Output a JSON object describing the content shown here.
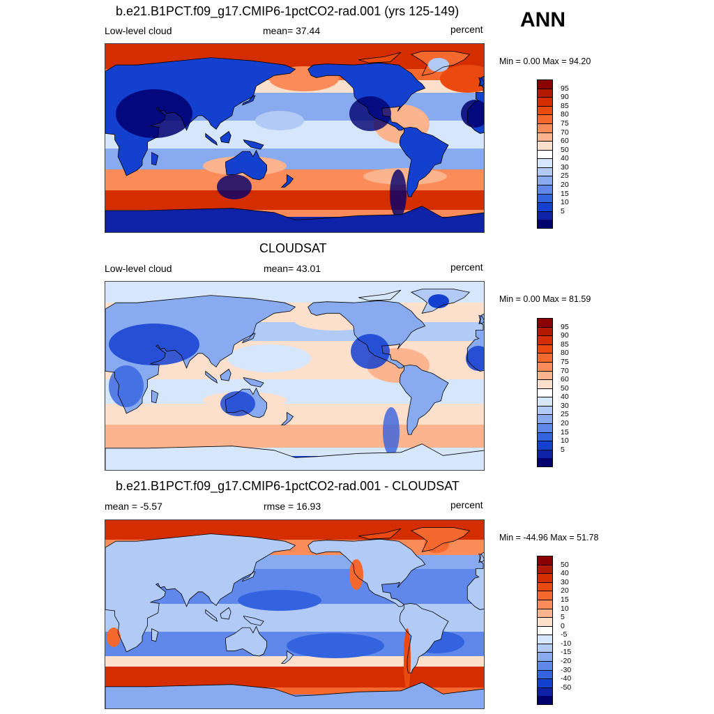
{
  "season": "ANN",
  "panels": [
    {
      "id": "model",
      "title": "b.e21.B1PCT.f09_g17.CMIP6-1pctCO2-rad.001 (yrs 125-149)",
      "left": "Low-level cloud",
      "center": "mean=  37.44",
      "right": "percent",
      "minmax": "Min =    0.00 Max =  94.20",
      "map_kind": "field",
      "mean": 37.44,
      "min": 0.0,
      "max": 94.2
    },
    {
      "id": "obs",
      "title": "CLOUDSAT",
      "left": "Low-level cloud",
      "center": "mean=  43.01",
      "right": "percent",
      "minmax": "Min =    0.00 Max =  81.59",
      "map_kind": "obs",
      "mean": 43.01,
      "min": 0.0,
      "max": 81.59
    },
    {
      "id": "diff",
      "title": "b.e21.B1PCT.f09_g17.CMIP6-1pctCO2-rad.001 - CLOUDSAT",
      "left": "mean =  -5.57",
      "center": "rmse =  16.93",
      "right": "percent",
      "minmax": "Min = -44.96 Max =  51.78",
      "map_kind": "diff",
      "mean": -5.57,
      "rmse": 16.93,
      "min": -44.96,
      "max": 51.78
    }
  ],
  "colorbars": {
    "field": {
      "labels": [
        "95",
        "90",
        "85",
        "80",
        "75",
        "70",
        "60",
        "50",
        "40",
        "30",
        "25",
        "20",
        "15",
        "10",
        "5"
      ],
      "colors": [
        "#8b0000",
        "#b21a00",
        "#d42e00",
        "#ea4a10",
        "#f5682e",
        "#fb8c5a",
        "#fcb48e",
        "#fde0cc",
        "#ffffff",
        "#d6e6fb",
        "#b1cbf6",
        "#88abf0",
        "#5f88ea",
        "#3463e0",
        "#1440d0",
        "#0d22a6",
        "#00006e"
      ]
    },
    "diff": {
      "labels": [
        "50",
        "40",
        "30",
        "20",
        "15",
        "10",
        "5",
        "0",
        "-5",
        "-10",
        "-15",
        "-20",
        "-30",
        "-40",
        "-50"
      ],
      "colors": [
        "#8b0000",
        "#b21a00",
        "#d42e00",
        "#ea4a10",
        "#f5682e",
        "#fb8c5a",
        "#fcb48e",
        "#fde0cc",
        "#ffffff",
        "#d6e6fb",
        "#b1cbf6",
        "#88abf0",
        "#5f88ea",
        "#3463e0",
        "#1440d0",
        "#0d22a6",
        "#00006e"
      ]
    }
  }
}
